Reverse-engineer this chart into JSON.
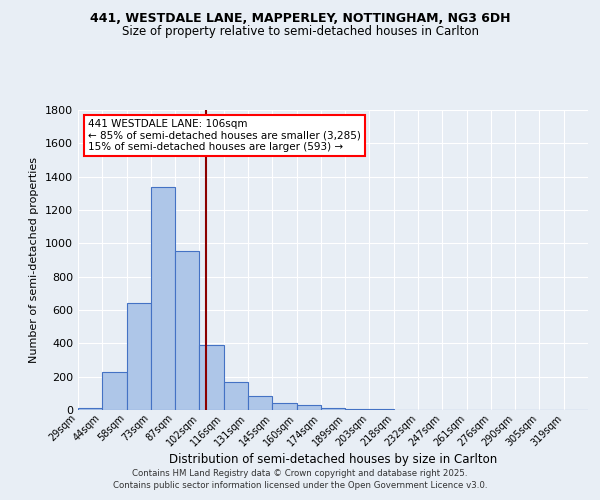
{
  "title1": "441, WESTDALE LANE, MAPPERLEY, NOTTINGHAM, NG3 6DH",
  "title2": "Size of property relative to semi-detached houses in Carlton",
  "xlabel": "Distribution of semi-detached houses by size in Carlton",
  "ylabel": "Number of semi-detached properties",
  "bin_labels": [
    "29sqm",
    "44sqm",
    "58sqm",
    "73sqm",
    "87sqm",
    "102sqm",
    "116sqm",
    "131sqm",
    "145sqm",
    "160sqm",
    "174sqm",
    "189sqm",
    "203sqm",
    "218sqm",
    "232sqm",
    "247sqm",
    "261sqm",
    "276sqm",
    "290sqm",
    "305sqm",
    "319sqm"
  ],
  "bar_heights": [
    15,
    230,
    645,
    1340,
    955,
    390,
    170,
    85,
    45,
    28,
    15,
    5,
    5,
    2,
    1,
    0,
    0,
    0,
    0,
    0,
    0
  ],
  "bar_color": "#aec6e8",
  "bar_edge_color": "#4472c4",
  "annotation_line1": "441 WESTDALE LANE: 106sqm",
  "annotation_line2": "← 85% of semi-detached houses are smaller (3,285)",
  "annotation_line3": "15% of semi-detached houses are larger (593) →",
  "ylim": [
    0,
    1800
  ],
  "yticks": [
    0,
    200,
    400,
    600,
    800,
    1000,
    1200,
    1400,
    1600,
    1800
  ],
  "bg_color": "#e8eef5",
  "grid_color": "white",
  "footer1": "Contains HM Land Registry data © Crown copyright and database right 2025.",
  "footer2": "Contains public sector information licensed under the Open Government Licence v3.0."
}
